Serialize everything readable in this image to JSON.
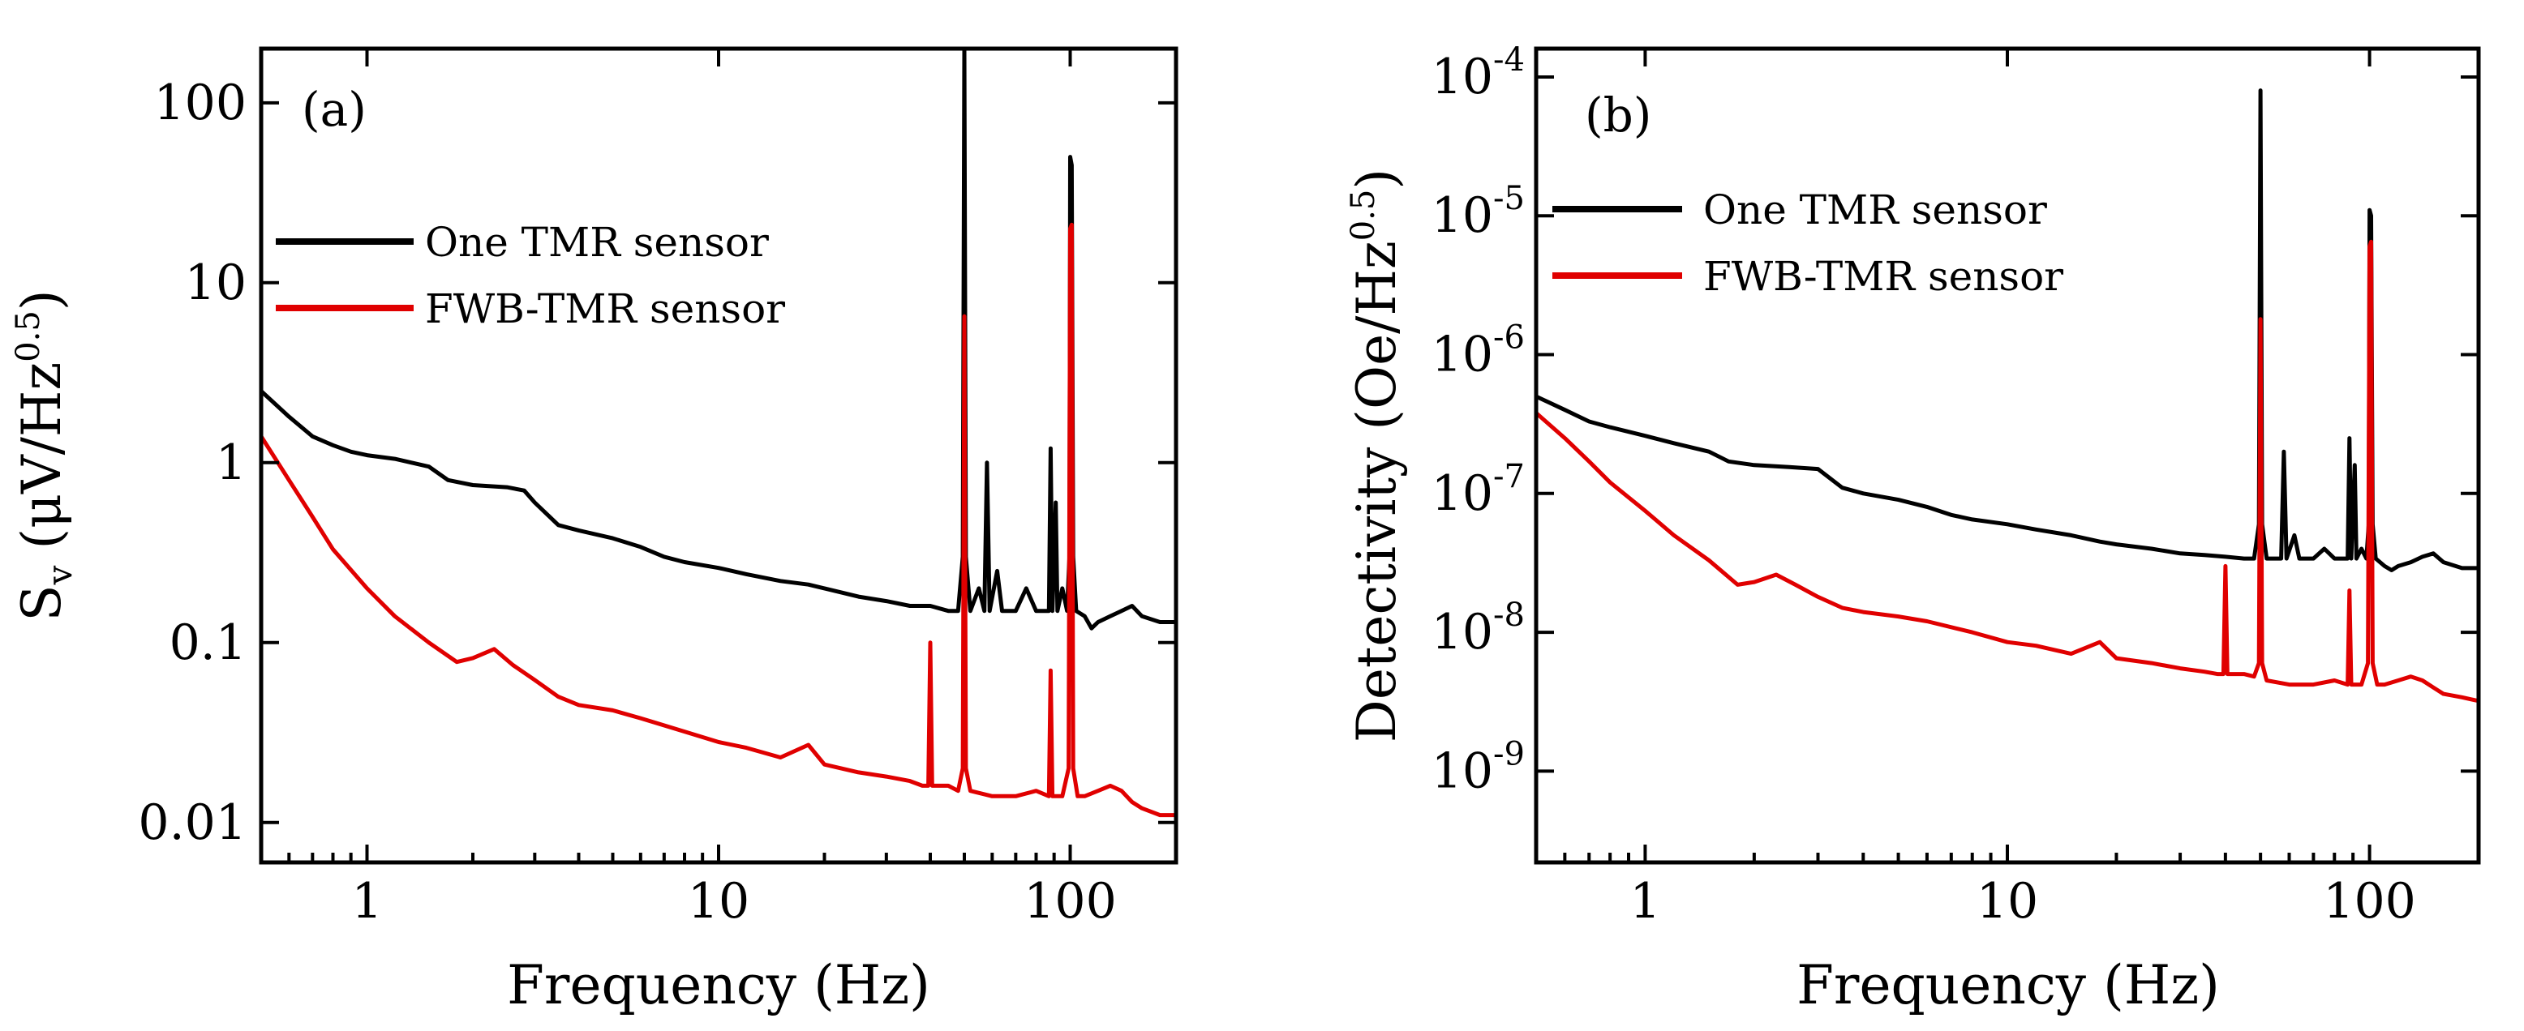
{
  "chart_data": [
    {
      "type": "line",
      "panel_label": "(a)",
      "xlabel": "Frequency (Hz)",
      "ylabel_main": "S",
      "ylabel_sub": "v",
      "ylabel_unit": "(μV/Hz",
      "ylabel_sup": "0.5",
      "ylabel_close": ")",
      "xscale": "log",
      "yscale": "log",
      "xlim": [
        0.5,
        200
      ],
      "ylim": [
        0.006,
        200
      ],
      "xticks": [
        {
          "value": 1,
          "label": "1"
        },
        {
          "value": 10,
          "label": "10"
        },
        {
          "value": 100,
          "label": "100"
        }
      ],
      "yticks": [
        {
          "value": 0.01,
          "label": "0.01"
        },
        {
          "value": 0.1,
          "label": "0.1"
        },
        {
          "value": 1,
          "label": "1"
        },
        {
          "value": 10,
          "label": "10"
        },
        {
          "value": 100,
          "label": "100"
        }
      ],
      "legend_position": "upper-left",
      "series": [
        {
          "name": "One TMR sensor",
          "color": "#000000",
          "points": [
            [
              0.5,
              2.5
            ],
            [
              0.6,
              1.8
            ],
            [
              0.7,
              1.4
            ],
            [
              0.8,
              1.25
            ],
            [
              0.9,
              1.15
            ],
            [
              1.0,
              1.1
            ],
            [
              1.2,
              1.05
            ],
            [
              1.5,
              0.95
            ],
            [
              1.7,
              0.8
            ],
            [
              2.0,
              0.75
            ],
            [
              2.5,
              0.73
            ],
            [
              2.8,
              0.7
            ],
            [
              3.0,
              0.6
            ],
            [
              3.5,
              0.45
            ],
            [
              4.0,
              0.42
            ],
            [
              5.0,
              0.38
            ],
            [
              6.0,
              0.34
            ],
            [
              7.0,
              0.3
            ],
            [
              8.0,
              0.28
            ],
            [
              10.0,
              0.26
            ],
            [
              12.0,
              0.24
            ],
            [
              15.0,
              0.22
            ],
            [
              18.0,
              0.21
            ],
            [
              20.0,
              0.2
            ],
            [
              25.0,
              0.18
            ],
            [
              30.0,
              0.17
            ],
            [
              35.0,
              0.16
            ],
            [
              40.0,
              0.16
            ],
            [
              45.0,
              0.15
            ],
            [
              48.0,
              0.15
            ],
            [
              49.5,
              0.3
            ],
            [
              50.0,
              200
            ],
            [
              50.5,
              0.3
            ],
            [
              52.0,
              0.15
            ],
            [
              55.0,
              0.2
            ],
            [
              57.0,
              0.15
            ],
            [
              58.0,
              1.0
            ],
            [
              59.0,
              0.15
            ],
            [
              62.0,
              0.25
            ],
            [
              64.0,
              0.15
            ],
            [
              70.0,
              0.15
            ],
            [
              75.0,
              0.2
            ],
            [
              80.0,
              0.15
            ],
            [
              87.0,
              0.15
            ],
            [
              88.0,
              1.2
            ],
            [
              89.0,
              0.15
            ],
            [
              91.0,
              0.6
            ],
            [
              92.0,
              0.15
            ],
            [
              95.0,
              0.2
            ],
            [
              98.0,
              0.15
            ],
            [
              99.5,
              0.3
            ],
            [
              100.0,
              50
            ],
            [
              101.0,
              45
            ],
            [
              102.0,
              0.3
            ],
            [
              104.0,
              0.15
            ],
            [
              110.0,
              0.14
            ],
            [
              115.0,
              0.12
            ],
            [
              120.0,
              0.13
            ],
            [
              130.0,
              0.14
            ],
            [
              140.0,
              0.15
            ],
            [
              150.0,
              0.16
            ],
            [
              160.0,
              0.14
            ],
            [
              180.0,
              0.13
            ],
            [
              200.0,
              0.13
            ]
          ]
        },
        {
          "name": "FWB-TMR sensor",
          "color": "#e00000",
          "points": [
            [
              0.5,
              1.4
            ],
            [
              0.6,
              0.8
            ],
            [
              0.7,
              0.5
            ],
            [
              0.8,
              0.33
            ],
            [
              1.0,
              0.2
            ],
            [
              1.2,
              0.14
            ],
            [
              1.5,
              0.1
            ],
            [
              1.8,
              0.078
            ],
            [
              2.0,
              0.082
            ],
            [
              2.3,
              0.092
            ],
            [
              2.6,
              0.075
            ],
            [
              3.0,
              0.062
            ],
            [
              3.5,
              0.05
            ],
            [
              4.0,
              0.045
            ],
            [
              5.0,
              0.042
            ],
            [
              6.0,
              0.038
            ],
            [
              8.0,
              0.032
            ],
            [
              10.0,
              0.028
            ],
            [
              12.0,
              0.026
            ],
            [
              15.0,
              0.023
            ],
            [
              18.0,
              0.027
            ],
            [
              20.0,
              0.021
            ],
            [
              25.0,
              0.019
            ],
            [
              30.0,
              0.018
            ],
            [
              35.0,
              0.017
            ],
            [
              38.0,
              0.016
            ],
            [
              39.5,
              0.016
            ],
            [
              40.0,
              0.1
            ],
            [
              40.5,
              0.016
            ],
            [
              45.0,
              0.016
            ],
            [
              48.0,
              0.015
            ],
            [
              49.5,
              0.02
            ],
            [
              50.0,
              6.5
            ],
            [
              50.5,
              0.02
            ],
            [
              52.0,
              0.015
            ],
            [
              60.0,
              0.014
            ],
            [
              70.0,
              0.014
            ],
            [
              80.0,
              0.015
            ],
            [
              87.0,
              0.014
            ],
            [
              88.0,
              0.07
            ],
            [
              89.0,
              0.014
            ],
            [
              95.0,
              0.014
            ],
            [
              99.0,
              0.02
            ],
            [
              100.0,
              20
            ],
            [
              101.0,
              21
            ],
            [
              102.0,
              0.02
            ],
            [
              105.0,
              0.014
            ],
            [
              110.0,
              0.014
            ],
            [
              120.0,
              0.015
            ],
            [
              130.0,
              0.016
            ],
            [
              140.0,
              0.015
            ],
            [
              150.0,
              0.013
            ],
            [
              160.0,
              0.012
            ],
            [
              180.0,
              0.011
            ],
            [
              200.0,
              0.011
            ]
          ]
        }
      ]
    },
    {
      "type": "line",
      "panel_label": "(b)",
      "xlabel": "Frequency (Hz)",
      "ylabel_main": "Detectivity (Oe/Hz",
      "ylabel_sup": "0.5",
      "ylabel_close": ")",
      "xscale": "log",
      "yscale": "log",
      "xlim": [
        0.5,
        200
      ],
      "ylim": [
        2.2e-10,
        0.00016
      ],
      "xticks": [
        {
          "value": 1,
          "label": "1"
        },
        {
          "value": 10,
          "label": "10"
        },
        {
          "value": 100,
          "label": "100"
        }
      ],
      "yticks": [
        {
          "value": 1e-09,
          "base": "10",
          "exp": "-9"
        },
        {
          "value": 1e-08,
          "base": "10",
          "exp": "-8"
        },
        {
          "value": 1e-07,
          "base": "10",
          "exp": "-7"
        },
        {
          "value": 1e-06,
          "base": "10",
          "exp": "-6"
        },
        {
          "value": 1e-05,
          "base": "10",
          "exp": "-5"
        },
        {
          "value": 0.0001,
          "base": "10",
          "exp": "-4"
        }
      ],
      "legend_position": "upper-left",
      "series": [
        {
          "name": "One TMR sensor",
          "color": "#000000",
          "points": [
            [
              0.5,
              5e-07
            ],
            [
              0.6,
              4e-07
            ],
            [
              0.7,
              3.3e-07
            ],
            [
              0.8,
              3e-07
            ],
            [
              1.0,
              2.6e-07
            ],
            [
              1.2,
              2.3e-07
            ],
            [
              1.5,
              2e-07
            ],
            [
              1.7,
              1.7e-07
            ],
            [
              2.0,
              1.6e-07
            ],
            [
              2.5,
              1.55e-07
            ],
            [
              3.0,
              1.5e-07
            ],
            [
              3.5,
              1.1e-07
            ],
            [
              4.0,
              1e-07
            ],
            [
              5.0,
              9e-08
            ],
            [
              6.0,
              8e-08
            ],
            [
              7.0,
              7e-08
            ],
            [
              8.0,
              6.5e-08
            ],
            [
              10.0,
              6e-08
            ],
            [
              12.0,
              5.5e-08
            ],
            [
              15.0,
              5e-08
            ],
            [
              18.0,
              4.5e-08
            ],
            [
              20.0,
              4.3e-08
            ],
            [
              25.0,
              4e-08
            ],
            [
              30.0,
              3.7e-08
            ],
            [
              35.0,
              3.6e-08
            ],
            [
              40.0,
              3.5e-08
            ],
            [
              45.0,
              3.4e-08
            ],
            [
              48.0,
              3.4e-08
            ],
            [
              49.5,
              6e-08
            ],
            [
              50.0,
              8e-05
            ],
            [
              50.5,
              6e-08
            ],
            [
              52.0,
              3.4e-08
            ],
            [
              57.0,
              3.4e-08
            ],
            [
              58.0,
              2e-07
            ],
            [
              59.0,
              3.4e-08
            ],
            [
              62.0,
              5e-08
            ],
            [
              64.0,
              3.4e-08
            ],
            [
              70.0,
              3.4e-08
            ],
            [
              75.0,
              4e-08
            ],
            [
              80.0,
              3.4e-08
            ],
            [
              87.0,
              3.4e-08
            ],
            [
              88.0,
              2.5e-07
            ],
            [
              89.0,
              3.4e-08
            ],
            [
              91.0,
              1.6e-07
            ],
            [
              92.0,
              3.4e-08
            ],
            [
              95.0,
              4e-08
            ],
            [
              98.0,
              3.4e-08
            ],
            [
              99.5,
              6e-08
            ],
            [
              100.0,
              1.1e-05
            ],
            [
              101.0,
              1e-05
            ],
            [
              102.0,
              6e-08
            ],
            [
              104.0,
              3.4e-08
            ],
            [
              110.0,
              3e-08
            ],
            [
              115.0,
              2.8e-08
            ],
            [
              120.0,
              3e-08
            ],
            [
              130.0,
              3.2e-08
            ],
            [
              140.0,
              3.5e-08
            ],
            [
              150.0,
              3.7e-08
            ],
            [
              160.0,
              3.2e-08
            ],
            [
              180.0,
              2.9e-08
            ],
            [
              200.0,
              2.9e-08
            ]
          ]
        },
        {
          "name": "FWB-TMR sensor",
          "color": "#e00000",
          "points": [
            [
              0.5,
              3.8e-07
            ],
            [
              0.6,
              2.5e-07
            ],
            [
              0.7,
              1.7e-07
            ],
            [
              0.8,
              1.2e-07
            ],
            [
              1.0,
              7.5e-08
            ],
            [
              1.2,
              5e-08
            ],
            [
              1.5,
              3.3e-08
            ],
            [
              1.8,
              2.2e-08
            ],
            [
              2.0,
              2.3e-08
            ],
            [
              2.3,
              2.6e-08
            ],
            [
              2.6,
              2.2e-08
            ],
            [
              3.0,
              1.8e-08
            ],
            [
              3.5,
              1.5e-08
            ],
            [
              4.0,
              1.4e-08
            ],
            [
              5.0,
              1.3e-08
            ],
            [
              6.0,
              1.2e-08
            ],
            [
              8.0,
              1e-08
            ],
            [
              10.0,
              8.5e-09
            ],
            [
              12.0,
              8e-09
            ],
            [
              15.0,
              7e-09
            ],
            [
              18.0,
              8.5e-09
            ],
            [
              20.0,
              6.5e-09
            ],
            [
              25.0,
              6e-09
            ],
            [
              30.0,
              5.5e-09
            ],
            [
              35.0,
              5.2e-09
            ],
            [
              38.0,
              5e-09
            ],
            [
              39.5,
              5e-09
            ],
            [
              40.0,
              3e-08
            ],
            [
              40.5,
              5e-09
            ],
            [
              45.0,
              5e-09
            ],
            [
              48.0,
              4.8e-09
            ],
            [
              49.5,
              6e-09
            ],
            [
              50.0,
              1.8e-06
            ],
            [
              50.5,
              6e-09
            ],
            [
              52.0,
              4.5e-09
            ],
            [
              60.0,
              4.2e-09
            ],
            [
              70.0,
              4.2e-09
            ],
            [
              80.0,
              4.5e-09
            ],
            [
              87.0,
              4.2e-09
            ],
            [
              88.0,
              2e-08
            ],
            [
              89.0,
              4.2e-09
            ],
            [
              95.0,
              4.2e-09
            ],
            [
              99.0,
              6e-09
            ],
            [
              100.0,
              6e-06
            ],
            [
              101.0,
              6.5e-06
            ],
            [
              102.0,
              6e-09
            ],
            [
              105.0,
              4.2e-09
            ],
            [
              110.0,
              4.2e-09
            ],
            [
              120.0,
              4.5e-09
            ],
            [
              130.0,
              4.8e-09
            ],
            [
              140.0,
              4.5e-09
            ],
            [
              150.0,
              4e-09
            ],
            [
              160.0,
              3.6e-09
            ],
            [
              180.0,
              3.4e-09
            ],
            [
              200.0,
              3.2e-09
            ]
          ]
        }
      ]
    }
  ]
}
